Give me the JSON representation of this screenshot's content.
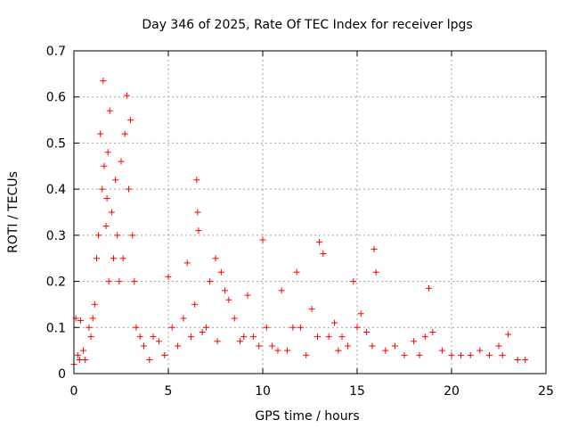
{
  "chart_data": {
    "type": "scatter",
    "title": "Day 346 of 2025, Rate Of TEC Index for receiver lpgs",
    "xlabel": "GPS time / hours",
    "ylabel": "ROTI / TECUs",
    "xlim": [
      0,
      25
    ],
    "ylim": [
      0,
      0.7
    ],
    "xticks": [
      0,
      5,
      10,
      15,
      20,
      25
    ],
    "yticks": [
      0,
      0.1,
      0.2,
      0.3,
      0.4,
      0.5,
      0.6,
      0.7
    ],
    "xtick_labels": [
      "0",
      "5",
      "10",
      "15",
      "20",
      "25"
    ],
    "ytick_labels": [
      "0",
      "0.1",
      "0.2",
      "0.3",
      "0.4",
      "0.5",
      "0.6",
      "0.7"
    ],
    "grid": true,
    "marker": "+",
    "color": "#ff0000",
    "series": [
      {
        "name": "ROTI",
        "x": [
          0.0,
          0.1,
          0.2,
          0.3,
          0.35,
          0.5,
          0.6,
          0.8,
          0.9,
          1.0,
          1.1,
          1.2,
          1.3,
          1.4,
          1.5,
          1.55,
          1.6,
          1.7,
          1.75,
          1.8,
          1.85,
          1.9,
          2.0,
          2.1,
          2.2,
          2.3,
          2.4,
          2.5,
          2.6,
          2.7,
          2.8,
          2.9,
          3.0,
          3.1,
          3.2,
          3.3,
          3.5,
          3.7,
          4.0,
          4.2,
          4.5,
          4.8,
          5.0,
          5.2,
          5.5,
          5.8,
          6.0,
          6.2,
          6.4,
          6.5,
          6.55,
          6.6,
          6.8,
          7.0,
          7.2,
          7.5,
          7.6,
          7.8,
          8.0,
          8.2,
          8.5,
          8.8,
          9.0,
          9.2,
          9.5,
          9.8,
          10.0,
          10.2,
          10.5,
          10.8,
          11.0,
          11.3,
          11.6,
          11.8,
          12.0,
          12.3,
          12.6,
          12.9,
          13.0,
          13.2,
          13.5,
          13.8,
          14.0,
          14.2,
          14.5,
          14.8,
          15.0,
          15.2,
          15.5,
          15.8,
          15.9,
          16.0,
          16.5,
          17.0,
          17.5,
          18.0,
          18.3,
          18.6,
          18.8,
          19.0,
          19.5,
          20.0,
          20.5,
          21.0,
          21.5,
          22.0,
          22.5,
          22.7,
          23.0,
          23.5,
          23.9
        ],
        "y": [
          0.02,
          0.12,
          0.04,
          0.03,
          0.115,
          0.05,
          0.03,
          0.1,
          0.08,
          0.12,
          0.15,
          0.25,
          0.3,
          0.52,
          0.4,
          0.635,
          0.45,
          0.32,
          0.38,
          0.48,
          0.2,
          0.57,
          0.35,
          0.25,
          0.42,
          0.3,
          0.2,
          0.46,
          0.25,
          0.52,
          0.603,
          0.4,
          0.55,
          0.3,
          0.2,
          0.1,
          0.08,
          0.06,
          0.03,
          0.08,
          0.07,
          0.04,
          0.21,
          0.1,
          0.06,
          0.12,
          0.24,
          0.08,
          0.15,
          0.42,
          0.35,
          0.31,
          0.09,
          0.1,
          0.2,
          0.25,
          0.07,
          0.22,
          0.18,
          0.16,
          0.12,
          0.07,
          0.08,
          0.17,
          0.08,
          0.06,
          0.29,
          0.1,
          0.06,
          0.05,
          0.18,
          0.05,
          0.1,
          0.22,
          0.1,
          0.04,
          0.14,
          0.08,
          0.285,
          0.26,
          0.08,
          0.11,
          0.05,
          0.08,
          0.06,
          0.2,
          0.1,
          0.13,
          0.09,
          0.06,
          0.27,
          0.22,
          0.05,
          0.06,
          0.04,
          0.07,
          0.04,
          0.08,
          0.185,
          0.09,
          0.05,
          0.04,
          0.04,
          0.04,
          0.05,
          0.04,
          0.06,
          0.04,
          0.085,
          0.03,
          0.03
        ]
      }
    ]
  }
}
